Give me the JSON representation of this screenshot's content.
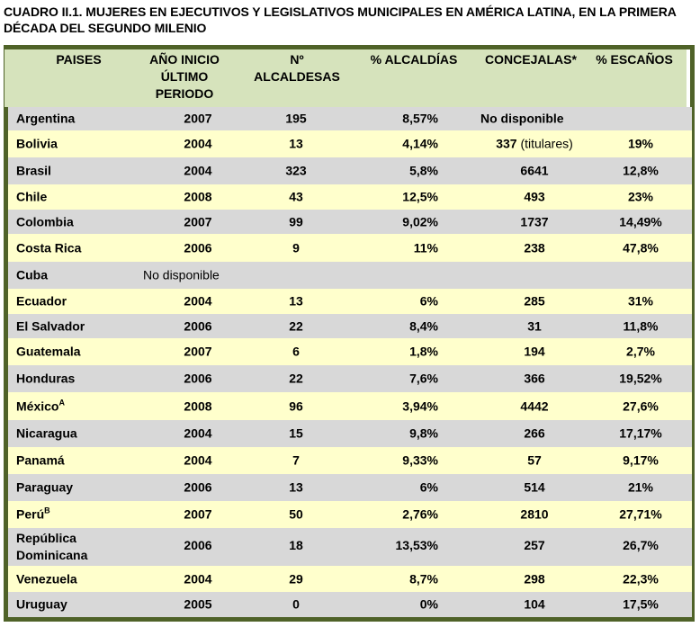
{
  "title": "CUADRO II.1. MUJERES EN EJECUTIVOS Y LEGISLATIVOS MUNICIPALES EN AMÉRICA LATINA,  EN LA PRIMERA DÉCADA DEL SEGUNDO MILENIO",
  "headers": {
    "paises": "PAISES",
    "anio_l1": "AÑO INICIO",
    "anio_l2": "ÚLTIMO",
    "anio_l3": "PERIODO",
    "n_l1": "Nº",
    "n_l2": "ALCALDESAS",
    "pct_alcaldias": "% ALCALDÍAS",
    "concejalas": "CONCEJALAS*",
    "pct_escanos": "% ESCAÑOS"
  },
  "rows": [
    {
      "pais": "Argentina",
      "anio": "2007",
      "alcaldesas": "195",
      "pct_alcaldias": "8,57%",
      "concejalas": "No disponible",
      "pct_escanos": ""
    },
    {
      "pais": "Bolivia",
      "anio": "2004",
      "alcaldesas": "13",
      "pct_alcaldias": "4,14%",
      "concejalas": "337",
      "concejalas_note": "(titulares)",
      "pct_escanos": "19%"
    },
    {
      "pais": "Brasil",
      "anio": "2004",
      "alcaldesas": "323",
      "pct_alcaldias": "5,8%",
      "concejalas": "6641",
      "pct_escanos": "12,8%"
    },
    {
      "pais": "Chile",
      "anio": "2008",
      "alcaldesas": "43",
      "pct_alcaldias": "12,5%",
      "concejalas": "493",
      "pct_escanos": "23%"
    },
    {
      "pais": "Colombia",
      "anio": "2007",
      "alcaldesas": "99",
      "pct_alcaldias": "9,02%",
      "concejalas": "1737",
      "pct_escanos": "14,49%"
    },
    {
      "pais": "Costa Rica",
      "anio": "2006",
      "alcaldesas": "9",
      "pct_alcaldias": "11%",
      "concejalas": "238",
      "pct_escanos": "47,8%"
    },
    {
      "pais": "Cuba",
      "anio": "No disponible",
      "alcaldesas": "",
      "pct_alcaldias": "",
      "concejalas": "",
      "pct_escanos": ""
    },
    {
      "pais": "Ecuador",
      "anio": "2004",
      "alcaldesas": "13",
      "pct_alcaldias": "6%",
      "concejalas": "285",
      "pct_escanos": "31%"
    },
    {
      "pais": "El Salvador",
      "anio": "2006",
      "alcaldesas": "22",
      "pct_alcaldias": "8,4%",
      "concejalas": "31",
      "pct_escanos": "11,8%"
    },
    {
      "pais": "Guatemala",
      "anio": "2007",
      "alcaldesas": "6",
      "pct_alcaldias": "1,8%",
      "concejalas": "194",
      "pct_escanos": "2,7%"
    },
    {
      "pais": "Honduras",
      "anio": "2006",
      "alcaldesas": "22",
      "pct_alcaldias": "7,6%",
      "concejalas": "366",
      "pct_escanos": "19,52%"
    },
    {
      "pais": "México",
      "pais_sup": "A",
      "anio": "2008",
      "alcaldesas": "96",
      "pct_alcaldias": "3,94%",
      "concejalas": "4442",
      "pct_escanos": "27,6%"
    },
    {
      "pais": "Nicaragua",
      "anio": "2004",
      "alcaldesas": "15",
      "pct_alcaldias": "9,8%",
      "concejalas": "266",
      "pct_escanos": "17,17%"
    },
    {
      "pais": "Panamá",
      "anio": "2004",
      "alcaldesas": "7",
      "pct_alcaldias": "9,33%",
      "concejalas": "57",
      "pct_escanos": "9,17%"
    },
    {
      "pais": "Paraguay",
      "anio": "2006",
      "alcaldesas": "13",
      "pct_alcaldias": "6%",
      "concejalas": "514",
      "pct_escanos": "21%"
    },
    {
      "pais": "Perú",
      "pais_sup": "B",
      "anio": "2007",
      "alcaldesas": "50",
      "pct_alcaldias": "2,76%",
      "concejalas": "2810",
      "pct_escanos": "27,71%"
    },
    {
      "pais_l1": "República",
      "pais_l2": "Dominicana",
      "anio": "2006",
      "alcaldesas": "18",
      "pct_alcaldias": "13,53%",
      "concejalas": "257",
      "pct_escanos": "26,7%"
    },
    {
      "pais": "Venezuela",
      "anio": "2004",
      "alcaldesas": "29",
      "pct_alcaldias": "8,7%",
      "concejalas": "298",
      "pct_escanos": "22,3%"
    },
    {
      "pais": "Uruguay",
      "anio": "2005",
      "alcaldesas": "0",
      "pct_alcaldias": "0%",
      "concejalas": "104",
      "pct_escanos": "17,5%"
    }
  ],
  "colors": {
    "frame": "#4f6228",
    "header_bg": "#d6e3bc",
    "row_gray": "#d8d8d8",
    "row_yellow": "#ffffcc"
  }
}
